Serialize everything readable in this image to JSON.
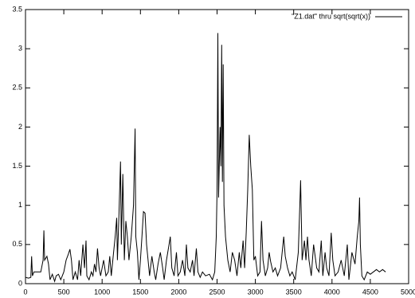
{
  "chart_data": {
    "type": "line",
    "series": [
      {
        "name": "\"Z1.dat\" thru sqrt(sqrt(x))",
        "color": "#000000",
        "x": [
          0,
          40,
          70,
          80,
          90,
          110,
          150,
          200,
          230,
          240,
          250,
          280,
          300,
          320,
          350,
          380,
          400,
          430,
          460,
          500,
          530,
          560,
          580,
          600,
          620,
          650,
          680,
          700,
          720,
          750,
          770,
          790,
          800,
          830,
          860,
          880,
          900,
          920,
          940,
          960,
          980,
          1000,
          1020,
          1050,
          1080,
          1100,
          1120,
          1150,
          1170,
          1190,
          1200,
          1220,
          1240,
          1250,
          1270,
          1290,
          1310,
          1330,
          1350,
          1380,
          1410,
          1430,
          1440,
          1460,
          1480,
          1500,
          1520,
          1540,
          1560,
          1580,
          1600,
          1620,
          1650,
          1680,
          1700,
          1730,
          1760,
          1790,
          1810,
          1840,
          1870,
          1890,
          1910,
          1940,
          1970,
          1990,
          2020,
          2050,
          2080,
          2100,
          2120,
          2150,
          2180,
          2200,
          2230,
          2250,
          2280,
          2310,
          2350,
          2400,
          2440,
          2470,
          2490,
          2500,
          2510,
          2520,
          2540,
          2550,
          2560,
          2570,
          2580,
          2590,
          2610,
          2640,
          2670,
          2700,
          2730,
          2760,
          2790,
          2810,
          2840,
          2860,
          2880,
          2900,
          2920,
          2940,
          2960,
          2980,
          3000,
          3030,
          3060,
          3080,
          3100,
          3130,
          3160,
          3180,
          3200,
          3230,
          3260,
          3290,
          3330,
          3370,
          3390,
          3420,
          3450,
          3480,
          3520,
          3560,
          3590,
          3610,
          3640,
          3660,
          3680,
          3700,
          3730,
          3760,
          3800,
          3830,
          3860,
          3880,
          3910,
          3930,
          3960,
          3990,
          4010,
          4040,
          4080,
          4120,
          4160,
          4200,
          4220,
          4260,
          4300,
          4330,
          4350,
          4360,
          4370,
          4390,
          4420,
          4460,
          4500,
          4540,
          4580,
          4620,
          4660,
          4700
        ],
        "values": [
          0.08,
          0.07,
          0.08,
          0.35,
          0.1,
          0.15,
          0.15,
          0.15,
          0.3,
          0.68,
          0.3,
          0.35,
          0.25,
          0.05,
          0.12,
          0.03,
          0.1,
          0.12,
          0.05,
          0.15,
          0.3,
          0.38,
          0.44,
          0.3,
          0.05,
          0.15,
          0.05,
          0.3,
          0.1,
          0.5,
          0.2,
          0.55,
          0.1,
          0.05,
          0.15,
          0.1,
          0.25,
          0.15,
          0.45,
          0.2,
          0.1,
          0.2,
          0.3,
          0.1,
          0.15,
          0.35,
          0.1,
          0.4,
          0.6,
          0.84,
          0.3,
          0.9,
          1.56,
          0.5,
          1.4,
          0.3,
          0.8,
          0.6,
          0.3,
          0.6,
          1.0,
          1.98,
          0.6,
          0.4,
          0.05,
          0.3,
          0.6,
          0.92,
          0.9,
          0.5,
          0.3,
          0.1,
          0.35,
          0.15,
          0.05,
          0.25,
          0.4,
          0.2,
          0.05,
          0.3,
          0.48,
          0.6,
          0.2,
          0.1,
          0.4,
          0.1,
          0.15,
          0.3,
          0.1,
          0.5,
          0.2,
          0.15,
          0.3,
          0.1,
          0.45,
          0.15,
          0.08,
          0.15,
          0.1,
          0.12,
          0.05,
          0.15,
          0.6,
          1.2,
          3.2,
          1.1,
          2.0,
          1.5,
          3.05,
          1.3,
          2.8,
          1.0,
          0.6,
          0.3,
          0.15,
          0.4,
          0.3,
          0.1,
          0.4,
          0.2,
          0.55,
          0.2,
          0.65,
          1.2,
          1.9,
          1.5,
          1.2,
          0.3,
          0.35,
          0.1,
          0.15,
          0.8,
          0.3,
          0.1,
          0.2,
          0.4,
          0.28,
          0.15,
          0.2,
          0.1,
          0.2,
          0.6,
          0.35,
          0.2,
          0.1,
          0.15,
          0.05,
          0.4,
          1.32,
          0.3,
          0.55,
          0.3,
          0.6,
          0.3,
          0.1,
          0.5,
          0.2,
          0.15,
          0.55,
          0.1,
          0.4,
          0.2,
          0.1,
          0.65,
          0.3,
          0.1,
          0.15,
          0.3,
          0.1,
          0.5,
          0.05,
          0.4,
          0.25,
          0.6,
          0.8,
          1.1,
          0.5,
          0.1,
          0.05,
          0.15,
          0.12,
          0.15,
          0.18,
          0.15,
          0.18,
          0.15
        ]
      }
    ],
    "xlim": [
      0,
      5000
    ],
    "xticks": [
      0,
      500,
      1000,
      1500,
      2000,
      2500,
      3000,
      3500,
      4000,
      4500,
      5000
    ],
    "ylim": [
      0,
      3.5
    ],
    "yticks": [
      0,
      0.5,
      1,
      1.5,
      2,
      2.5,
      3,
      3.5
    ],
    "legend": "top-right"
  }
}
